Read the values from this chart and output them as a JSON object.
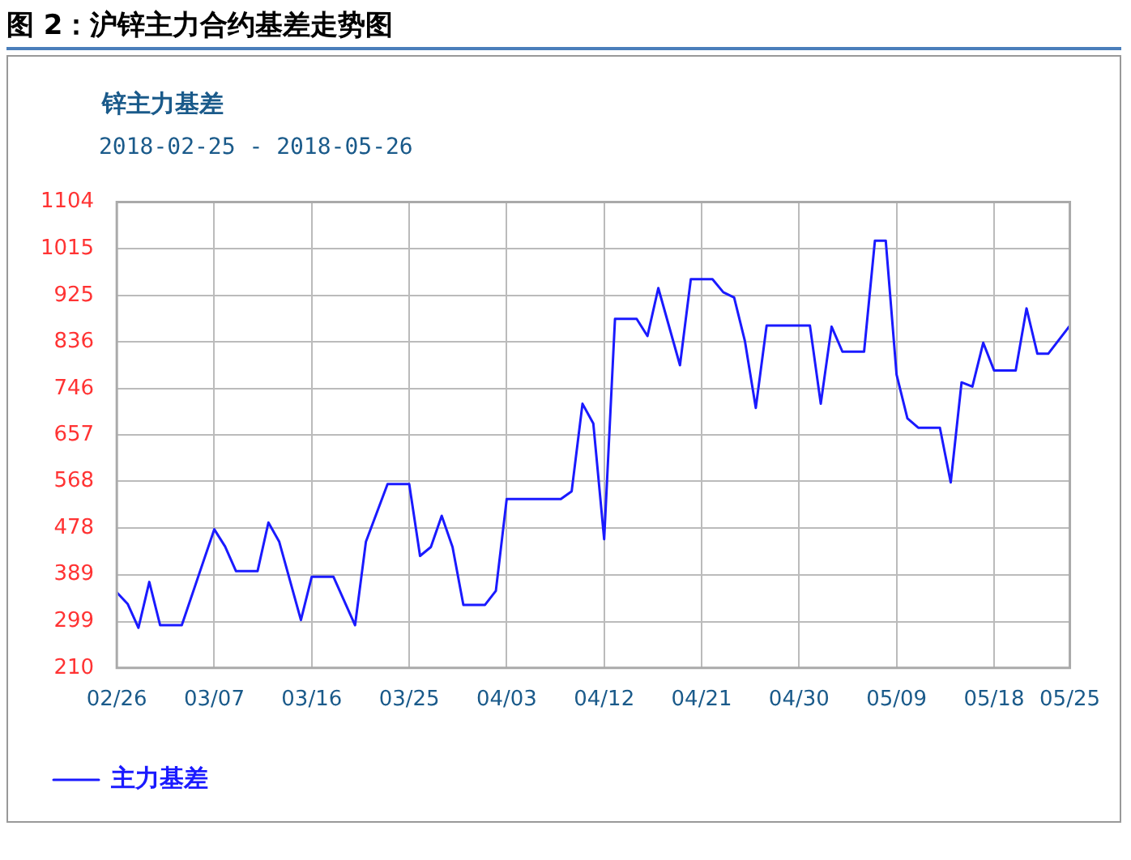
{
  "chart_data": {
    "type": "line",
    "title": "图 2：沪锌主力合约基差走势图",
    "subtitle": "锌主力基差",
    "annotations": [
      "2018-02-25 - 2018-05-26"
    ],
    "series": [
      {
        "name": "主力基差",
        "color": "#1a1aff",
        "x": [
          "2018-02-26",
          "2018-02-27",
          "2018-02-28",
          "2018-03-01",
          "2018-03-02",
          "2018-03-04",
          "2018-03-07",
          "2018-03-08",
          "2018-03-09",
          "2018-03-11",
          "2018-03-12",
          "2018-03-13",
          "2018-03-15",
          "2018-03-16",
          "2018-03-18",
          "2018-03-20",
          "2018-03-21",
          "2018-03-23",
          "2018-03-25",
          "2018-03-26",
          "2018-03-27",
          "2018-03-28",
          "2018-03-29",
          "2018-03-30",
          "2018-04-01",
          "2018-04-02",
          "2018-04-03",
          "2018-04-08",
          "2018-04-09",
          "2018-04-10",
          "2018-04-11",
          "2018-04-12",
          "2018-04-13",
          "2018-04-15",
          "2018-04-16",
          "2018-04-17",
          "2018-04-19",
          "2018-04-20",
          "2018-04-22",
          "2018-04-23",
          "2018-04-24",
          "2018-04-25",
          "2018-04-26",
          "2018-04-27",
          "2018-05-01",
          "2018-05-02",
          "2018-05-03",
          "2018-05-04",
          "2018-05-06",
          "2018-05-07",
          "2018-05-08",
          "2018-05-09",
          "2018-05-10",
          "2018-05-11",
          "2018-05-13",
          "2018-05-14",
          "2018-05-15",
          "2018-05-16",
          "2018-05-17",
          "2018-05-18",
          "2018-05-20",
          "2018-05-21",
          "2018-05-22",
          "2018-05-23",
          "2018-05-25"
        ],
        "values": [
          355,
          333,
          287,
          375,
          292,
          292,
          476,
          443,
          396,
          396,
          489,
          452,
          302,
          385,
          385,
          292,
          452,
          563,
          563,
          425,
          442,
          502,
          442,
          331,
          331,
          358,
          534,
          534,
          549,
          717,
          679,
          457,
          880,
          880,
          847,
          939,
          791,
          956,
          956,
          931,
          921,
          837,
          709,
          867,
          867,
          717,
          865,
          817,
          817,
          1030,
          1030,
          773,
          689,
          671,
          671,
          566,
          758,
          750,
          834,
          781,
          781,
          900,
          813,
          813,
          867
        ]
      }
    ],
    "xlim": [
      "2018-02-26",
      "2018-05-25"
    ],
    "xticks": [
      {
        "value": "2018-02-26",
        "label": "02/26"
      },
      {
        "value": "2018-03-07",
        "label": "03/07"
      },
      {
        "value": "2018-03-16",
        "label": "03/16"
      },
      {
        "value": "2018-03-25",
        "label": "03/25"
      },
      {
        "value": "2018-04-03",
        "label": "04/03"
      },
      {
        "value": "2018-04-12",
        "label": "04/12"
      },
      {
        "value": "2018-04-21",
        "label": "04/21"
      },
      {
        "value": "2018-04-30",
        "label": "04/30"
      },
      {
        "value": "2018-05-09",
        "label": "05/09"
      },
      {
        "value": "2018-05-18",
        "label": "05/18"
      },
      {
        "value": "2018-05-25",
        "label": "05/25"
      }
    ],
    "ylim": [
      210,
      1104
    ],
    "yticks": [
      210,
      299,
      389,
      478,
      568,
      657,
      746,
      836,
      925,
      1015,
      1104
    ],
    "grid": true,
    "legend": "bottom left"
  }
}
